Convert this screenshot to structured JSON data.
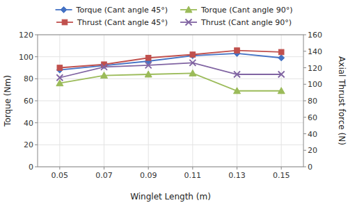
{
  "chart_data": {
    "type": "line",
    "xlabel": "Winglet Length (m)",
    "ylabel": "Torque (Nm)",
    "y2label": "Axial Thrust force (N)",
    "x": [
      0.05,
      0.07,
      0.09,
      0.11,
      0.13,
      0.15
    ],
    "xlim": [
      0.04,
      0.16
    ],
    "xticks": [
      0.05,
      0.07,
      0.09,
      0.11,
      0.13,
      0.15
    ],
    "ylim": [
      0,
      120
    ],
    "yticks": [
      0,
      20,
      40,
      60,
      80,
      100,
      120
    ],
    "y2lim": [
      0,
      160
    ],
    "y2ticks": [
      0,
      20,
      40,
      60,
      80,
      100,
      120,
      140,
      160
    ],
    "grid": true,
    "legend": "top",
    "series": [
      {
        "name": "Torque (Cant angle 45°)",
        "color": "#4472C4",
        "marker": "diamond",
        "values": [
          88,
          92,
          96,
          101,
          103,
          99
        ]
      },
      {
        "name": "Torque (Cant angle 90°)",
        "color": "#9BBB59",
        "marker": "triangle",
        "values": [
          76,
          83,
          84,
          85,
          69,
          69
        ]
      },
      {
        "name": "Thrust (Cant angle 45°)",
        "color": "#C0504D",
        "marker": "square",
        "axis": "y2",
        "values": [
          120,
          124,
          132,
          136,
          141,
          139
        ]
      },
      {
        "name": "Thrust (Cant angle 90°)",
        "color": "#8064A2",
        "marker": "x",
        "axis": "y2",
        "values": [
          108,
          121,
          123,
          126,
          112,
          112
        ]
      }
    ]
  }
}
